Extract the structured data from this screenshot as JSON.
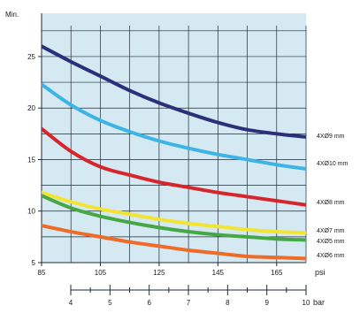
{
  "chart_data": {
    "type": "line",
    "title": "",
    "ylabel": "Min.",
    "xlabel_top": "psi",
    "xlabel_bottom": "bar",
    "xlim": [
      85,
      175
    ],
    "ylim": [
      5,
      28
    ],
    "yticks": [
      5,
      10,
      15,
      20,
      25
    ],
    "xticks_psi": [
      85,
      105,
      125,
      145,
      165
    ],
    "xticks_bar": [
      4,
      5,
      6,
      7,
      8,
      9,
      10
    ],
    "grid": true,
    "colors": {
      "background": "#d5e9f2",
      "grid": "#1f2a36",
      "axis": "#1f2a36"
    },
    "series": [
      {
        "name": "4XØ9 mm",
        "color": "#2c2f7a",
        "x": [
          85,
          95,
          105,
          115,
          125,
          135,
          145,
          155,
          165,
          175
        ],
        "y": [
          26.0,
          24.5,
          23.1,
          21.7,
          20.5,
          19.5,
          18.6,
          17.9,
          17.5,
          17.2
        ]
      },
      {
        "name": "4XØ10 mm",
        "color": "#3cb4e6",
        "x": [
          85,
          95,
          105,
          115,
          125,
          135,
          145,
          155,
          165,
          175
        ],
        "y": [
          22.3,
          20.3,
          18.8,
          17.7,
          16.8,
          16.1,
          15.5,
          15.0,
          14.5,
          14.1
        ]
      },
      {
        "name": "4XØ8 mm",
        "color": "#d6262b",
        "x": [
          85,
          95,
          105,
          115,
          125,
          135,
          145,
          155,
          165,
          175
        ],
        "y": [
          18.0,
          15.8,
          14.3,
          13.5,
          12.8,
          12.3,
          11.8,
          11.4,
          11.0,
          10.6
        ]
      },
      {
        "name": "4XØ7 mm",
        "color": "#f2e532",
        "x": [
          85,
          95,
          105,
          115,
          125,
          135,
          145,
          155,
          165,
          175
        ],
        "y": [
          11.8,
          10.9,
          10.2,
          9.7,
          9.2,
          8.8,
          8.5,
          8.2,
          8.0,
          7.9
        ]
      },
      {
        "name": "4XØ5 mm",
        "color": "#46a844",
        "x": [
          85,
          95,
          105,
          115,
          125,
          135,
          145,
          155,
          165,
          175
        ],
        "y": [
          11.5,
          10.3,
          9.5,
          8.9,
          8.4,
          8.0,
          7.7,
          7.5,
          7.3,
          7.2
        ]
      },
      {
        "name": "4XØ6 mm",
        "color": "#ef6b28",
        "x": [
          85,
          95,
          105,
          115,
          125,
          135,
          145,
          155,
          165,
          175
        ],
        "y": [
          8.6,
          8.0,
          7.5,
          7.0,
          6.6,
          6.2,
          5.9,
          5.6,
          5.5,
          5.4
        ]
      }
    ]
  }
}
